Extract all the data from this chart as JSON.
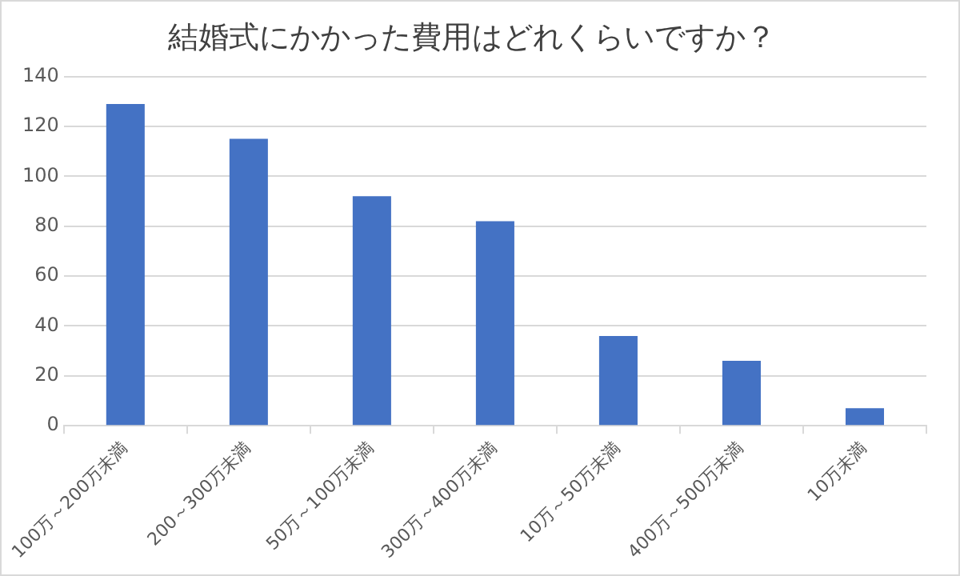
{
  "chart_data": {
    "type": "bar",
    "title": "結婚式にかかった費用はどれくらいですか？",
    "categories": [
      "100万～200万未満",
      "200～300万未満",
      "50万～100万未満",
      "300万～400万未満",
      "10万～50万未満",
      "400万～500万未満",
      "10万未満"
    ],
    "values": [
      129,
      115,
      92,
      82,
      36,
      26,
      7
    ],
    "color": "#4472c4",
    "ylim": [
      0,
      140
    ],
    "yticks": [
      0,
      20,
      40,
      60,
      80,
      100,
      120,
      140
    ],
    "grid": "y",
    "legend": false
  }
}
